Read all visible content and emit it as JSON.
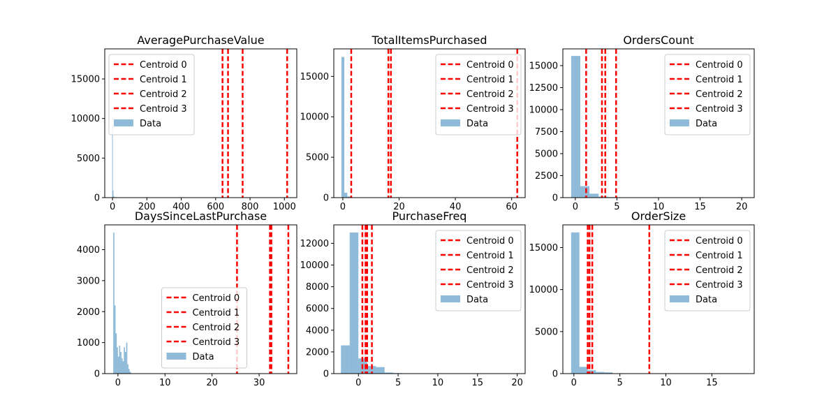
{
  "colors": {
    "background": "#ffffff",
    "axes": "#000000",
    "histogram_fill": "#1f77b4",
    "histogram_alpha": 0.5,
    "centroid_line": "#ff0000"
  },
  "chart_data": [
    {
      "type": "bar",
      "title": "AveragePurchaseValue",
      "xlabel": "",
      "ylabel": "",
      "xlim": [
        -45,
        1072
      ],
      "ylim": [
        0,
        18800
      ],
      "xticks": [
        0,
        200,
        400,
        600,
        800,
        1000
      ],
      "xtick_labels": [
        "0",
        "200",
        "400",
        "600",
        "800",
        "1000"
      ],
      "yticks": [
        0,
        5000,
        10000,
        15000
      ],
      "ytick_labels": [
        "0",
        "5000",
        "10000",
        "15000"
      ],
      "grid": false,
      "legend_placement": "upper left",
      "histogram": {
        "name": "Data",
        "bin_edges": [
          -2,
          2,
          6,
          10,
          14,
          18,
          22
        ],
        "counts": [
          9000,
          900,
          200,
          60,
          20,
          5
        ]
      },
      "centroids": [
        {
          "name": "Centroid 0",
          "x": 640
        },
        {
          "name": "Centroid 1",
          "x": 672
        },
        {
          "name": "Centroid 2",
          "x": 757
        },
        {
          "name": "Centroid 3",
          "x": 1016
        }
      ]
    },
    {
      "type": "bar",
      "title": "TotalItemsPurchased",
      "xlabel": "",
      "ylabel": "",
      "xlim": [
        -3.2,
        64.8
      ],
      "ylim": [
        0,
        18400
      ],
      "xticks": [
        0,
        20,
        40,
        60
      ],
      "xtick_labels": [
        "0",
        "20",
        "40",
        "60"
      ],
      "yticks": [
        0,
        5000,
        10000,
        15000
      ],
      "ytick_labels": [
        "0",
        "5000",
        "10000",
        "15000"
      ],
      "grid": false,
      "legend_placement": "upper right",
      "histogram": {
        "name": "Data",
        "bin_edges": [
          -0.5,
          0.55,
          1.6,
          2.65,
          3.7,
          4.75
        ],
        "counts": [
          17400,
          600,
          150,
          40,
          10
        ]
      },
      "centroids": [
        {
          "name": "Centroid 0",
          "x": 3.0
        },
        {
          "name": "Centroid 1",
          "x": 16.2
        },
        {
          "name": "Centroid 2",
          "x": 17.1
        },
        {
          "name": "Centroid 3",
          "x": 62.0
        }
      ]
    },
    {
      "type": "bar",
      "title": "OrdersCount",
      "xlabel": "",
      "ylabel": "",
      "xlim": [
        -1.5,
        21.5
      ],
      "ylim": [
        0,
        16900
      ],
      "xticks": [
        0,
        5,
        10,
        15,
        20
      ],
      "xtick_labels": [
        "0",
        "5",
        "10",
        "15",
        "20"
      ],
      "yticks": [
        0,
        2500,
        5000,
        7500,
        10000,
        12500,
        15000
      ],
      "ytick_labels": [
        "0",
        "2500",
        "5000",
        "7500",
        "10000",
        "12500",
        "15000"
      ],
      "grid": false,
      "legend_placement": "upper right",
      "histogram": {
        "name": "Data",
        "bin_edges": [
          -0.5,
          0.6,
          1.7,
          2.8,
          3.9,
          5.0,
          6.1,
          7.2
        ],
        "counts": [
          16100,
          1300,
          450,
          120,
          60,
          20,
          10
        ]
      },
      "centroids": [
        {
          "name": "Centroid 0",
          "x": 1.3
        },
        {
          "name": "Centroid 1",
          "x": 3.2
        },
        {
          "name": "Centroid 2",
          "x": 3.6
        },
        {
          "name": "Centroid 3",
          "x": 4.9
        }
      ]
    },
    {
      "type": "bar",
      "title": "DaysSinceLastPurchase",
      "xlabel": "",
      "ylabel": "",
      "xlim": [
        -2.8,
        38.0
      ],
      "ylim": [
        0,
        4800
      ],
      "xticks": [
        0,
        10,
        20,
        30
      ],
      "xtick_labels": [
        "0",
        "10",
        "20",
        "30"
      ],
      "yticks": [
        0,
        1000,
        2000,
        3000,
        4000
      ],
      "ytick_labels": [
        "0",
        "1000",
        "2000",
        "3000",
        "4000"
      ],
      "grid": false,
      "legend_placement": "lower center",
      "histogram": {
        "name": "Data",
        "bin_edges": [
          -1.0,
          -0.75,
          -0.5,
          -0.25,
          0.0,
          0.25,
          0.5,
          0.75,
          1.0,
          1.25,
          1.5,
          1.75,
          2.0,
          2.25,
          2.5,
          2.75
        ],
        "counts": [
          4550,
          2200,
          1300,
          850,
          550,
          900,
          700,
          500,
          400,
          850,
          700,
          1000,
          300,
          150,
          60
        ]
      },
      "centroids": [
        {
          "name": "Centroid 0",
          "x": 25.3
        },
        {
          "name": "Centroid 1",
          "x": 32.3
        },
        {
          "name": "Centroid 2",
          "x": 32.6
        },
        {
          "name": "Centroid 3",
          "x": 36.2
        }
      ]
    },
    {
      "type": "bar",
      "title": "PurchaseFreq",
      "xlabel": "",
      "ylabel": "",
      "xlim": [
        -3.1,
        21.0
      ],
      "ylim": [
        0,
        13700
      ],
      "xticks": [
        0,
        5,
        10,
        15,
        20
      ],
      "xtick_labels": [
        "0",
        "5",
        "10",
        "15",
        "20"
      ],
      "yticks": [
        0,
        2000,
        4000,
        6000,
        8000,
        10000,
        12000
      ],
      "ytick_labels": [
        "0",
        "2000",
        "4000",
        "6000",
        "8000",
        "10000",
        "12000"
      ],
      "grid": false,
      "legend_placement": "upper right",
      "histogram": {
        "name": "Data",
        "bin_edges": [
          -2.2,
          -1.1,
          0.0,
          1.1,
          2.2,
          3.3,
          4.4,
          5.5
        ],
        "counts": [
          2600,
          13000,
          1400,
          700,
          600,
          100,
          50
        ]
      },
      "centroids": [
        {
          "name": "Centroid 0",
          "x": 0.5
        },
        {
          "name": "Centroid 1",
          "x": 0.9
        },
        {
          "name": "Centroid 2",
          "x": 1.1
        },
        {
          "name": "Centroid 3",
          "x": 1.7
        }
      ]
    },
    {
      "type": "bar",
      "title": "OrderSize",
      "xlabel": "",
      "ylabel": "",
      "xlim": [
        -1.2,
        19.6
      ],
      "ylim": [
        0,
        17700
      ],
      "xticks": [
        0,
        5,
        10,
        15
      ],
      "xtick_labels": [
        "0",
        "5",
        "10",
        "15"
      ],
      "yticks": [
        0,
        5000,
        10000,
        15000
      ],
      "ytick_labels": [
        "0",
        "5000",
        "10000",
        "15000"
      ],
      "grid": false,
      "legend_placement": "upper right",
      "histogram": {
        "name": "Data",
        "bin_edges": [
          -0.3,
          0.6,
          1.5,
          2.4,
          3.3,
          4.2
        ],
        "counts": [
          16800,
          800,
          400,
          200,
          150
        ]
      },
      "centroids": [
        {
          "name": "Centroid 0",
          "x": 1.5
        },
        {
          "name": "Centroid 1",
          "x": 1.7
        },
        {
          "name": "Centroid 2",
          "x": 2.0
        },
        {
          "name": "Centroid 3",
          "x": 8.2
        }
      ]
    }
  ]
}
